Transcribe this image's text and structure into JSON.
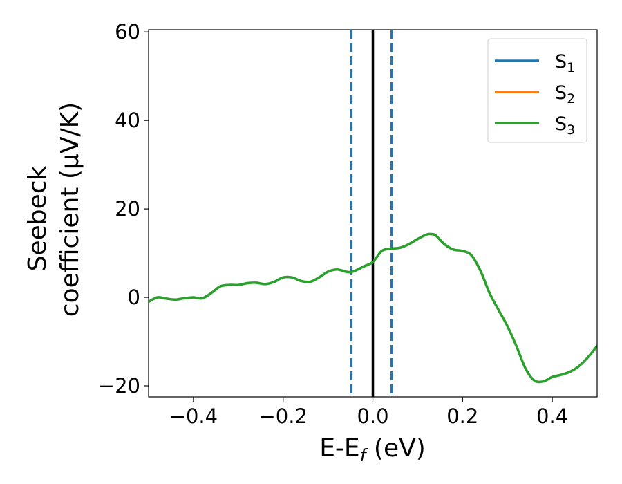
{
  "chart_data": {
    "type": "line",
    "xlabel": "E-E",
    "xlabel_sub": "f",
    "xlabel_unit": " (eV)",
    "ylabel_line1": "Seebeck",
    "ylabel_line2": "coefficient  (μV/K)",
    "xlim": [
      -0.5,
      0.5
    ],
    "ylim": [
      -22.5,
      60.5
    ],
    "xticks": [
      -0.4,
      -0.2,
      0.0,
      0.2,
      0.4
    ],
    "xtick_labels": [
      "−0.4",
      "−0.2",
      "0.0",
      "0.2",
      "0.4"
    ],
    "yticks": [
      -20,
      0,
      20,
      40,
      60
    ],
    "ytick_labels": [
      "−20",
      "0",
      "20",
      "40",
      "60"
    ],
    "grid": false,
    "legend_position": "top-right",
    "legend": [
      {
        "label": "S",
        "sub": "1",
        "color": "#1f77b4"
      },
      {
        "label": "S",
        "sub": "2",
        "color": "#ff7f0e"
      },
      {
        "label": "S",
        "sub": "3",
        "color": "#2ca02c"
      }
    ],
    "vlines": [
      {
        "x": -0.048,
        "color": "#1f77b4",
        "style": "dashed"
      },
      {
        "x": 0.0,
        "color": "#000000",
        "style": "solid"
      },
      {
        "x": 0.042,
        "color": "#1f77b4",
        "style": "dashed"
      }
    ],
    "series": [
      {
        "color": "#2ca02c",
        "x": [
          -0.5,
          -0.48,
          -0.46,
          -0.44,
          -0.42,
          -0.4,
          -0.38,
          -0.36,
          -0.34,
          -0.32,
          -0.3,
          -0.28,
          -0.26,
          -0.24,
          -0.22,
          -0.2,
          -0.18,
          -0.16,
          -0.14,
          -0.12,
          -0.1,
          -0.08,
          -0.06,
          -0.05,
          -0.04,
          -0.02,
          0.0,
          0.02,
          0.04,
          0.06,
          0.08,
          0.1,
          0.12,
          0.13,
          0.14,
          0.16,
          0.18,
          0.2,
          0.22,
          0.24,
          0.26,
          0.28,
          0.3,
          0.32,
          0.34,
          0.36,
          0.38,
          0.4,
          0.42,
          0.44,
          0.46,
          0.48,
          0.5
        ],
        "y": [
          -1.0,
          0.0,
          -0.3,
          -0.5,
          -0.2,
          0.0,
          -0.2,
          1.0,
          2.5,
          2.8,
          2.8,
          3.2,
          3.3,
          3.0,
          3.5,
          4.5,
          4.5,
          3.7,
          3.5,
          4.5,
          5.8,
          6.3,
          5.8,
          5.7,
          6.0,
          7.0,
          8.0,
          10.5,
          11.0,
          11.2,
          12.0,
          13.2,
          14.2,
          14.3,
          14.0,
          12.0,
          10.8,
          10.5,
          9.5,
          6.0,
          1.0,
          -2.8,
          -6.5,
          -11.0,
          -16.0,
          -18.8,
          -19.0,
          -18.0,
          -17.5,
          -16.8,
          -15.5,
          -13.5,
          -11.0
        ]
      }
    ]
  }
}
